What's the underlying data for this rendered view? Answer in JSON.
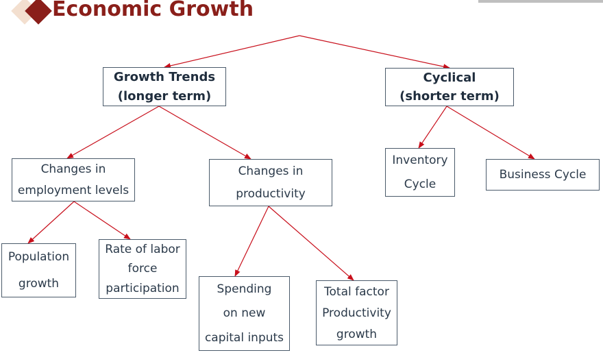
{
  "header": {
    "title": "Economic Growth",
    "accent_color": "#8a1f1a",
    "accent_light_color": "#f3dfcf"
  },
  "diagram": {
    "arrow_color": "#c8101c",
    "nodes": {
      "growth_trends": {
        "lines": [
          "Growth Trends",
          "(longer term)"
        ]
      },
      "cyclical": {
        "lines": [
          "Cyclical",
          "(shorter term)"
        ]
      },
      "employment": {
        "lines": [
          "Changes in",
          "employment levels"
        ]
      },
      "productivity": {
        "lines": [
          "Changes in",
          "productivity"
        ]
      },
      "inventory": {
        "lines": [
          "Inventory",
          "Cycle"
        ]
      },
      "business": {
        "lines": [
          "Business Cycle"
        ]
      },
      "population": {
        "lines": [
          "Population",
          "growth"
        ]
      },
      "labor": {
        "lines": [
          "Rate of labor",
          "force",
          "participation"
        ]
      },
      "spending": {
        "lines": [
          "Spending",
          "on new",
          "capital inputs"
        ]
      },
      "tfp": {
        "lines": [
          "Total factor",
          "Productivity",
          "growth"
        ]
      }
    }
  }
}
